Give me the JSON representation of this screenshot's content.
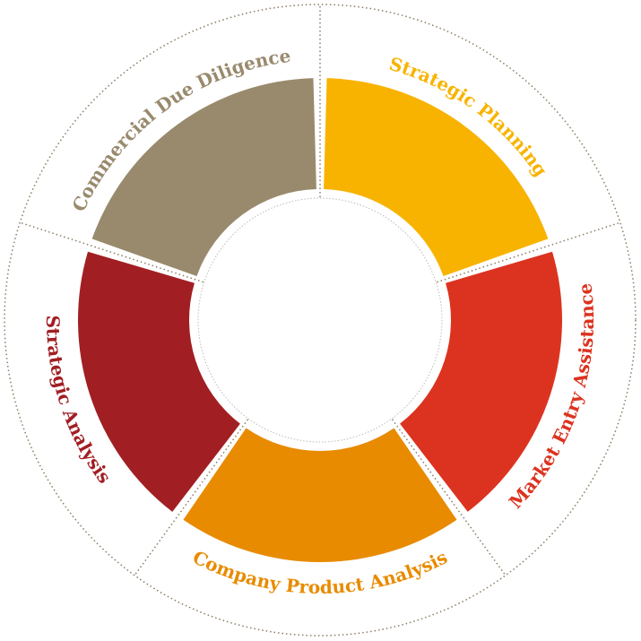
{
  "segments": [
    {
      "label": "Strategic Planning",
      "color": "#f8b300"
    },
    {
      "label": "Market Entry Assistance",
      "color": "#dc3320"
    },
    {
      "label": "Company Product Analysis",
      "color": "#e88b00"
    },
    {
      "label": "Strategic Analysis",
      "color": "#a11f23"
    },
    {
      "label": "Commercial Due Diligence",
      "color": "#998a6d"
    }
  ]
}
